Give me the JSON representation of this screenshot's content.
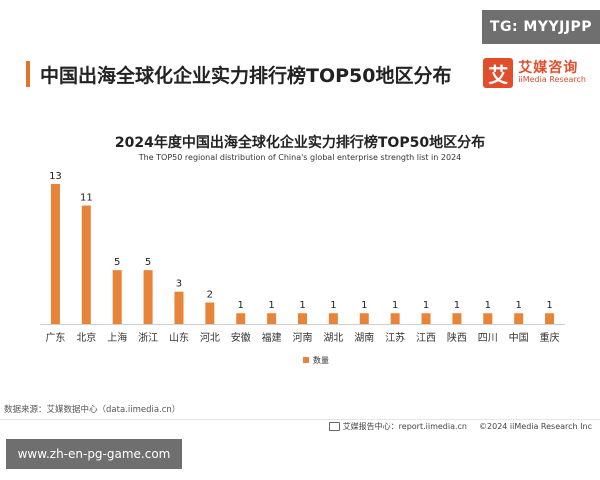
{
  "watermark": {
    "tg_label": "TG: MYYJJPP",
    "url": "www.zh-en-pg-game.com"
  },
  "header": {
    "title": "中国出海全球化企业实力排行榜TOP50地区分布"
  },
  "logo": {
    "glyph": "艾",
    "name_cn": "艾媒咨询",
    "name_en": "iiMedia Research"
  },
  "footer": {
    "source": "数据来源：艾媒数据中心（data.iimedia.cn）",
    "report": "艾媒报告中心：report.iimedia.cn",
    "copyright": "©2024  iiMedia Research  Inc"
  },
  "colors": {
    "bar": "#e8843a",
    "accent": "#e0742a",
    "logo": "#e24d2c"
  },
  "chart_data": {
    "type": "bar",
    "title": "2024年度中国出海全球化企业实力排行榜TOP50地区分布",
    "subtitle": "The TOP50 regional distribution of China's global enterprise strength list in 2024",
    "categories": [
      "广东",
      "北京",
      "上海",
      "浙江",
      "山东",
      "河北",
      "安徽",
      "福建",
      "河南",
      "湖北",
      "湖南",
      "江苏",
      "江西",
      "陕西",
      "四川",
      "中国",
      "重庆"
    ],
    "series": [
      {
        "name": "数量",
        "values": [
          13,
          11,
          5,
          5,
          3,
          2,
          1,
          1,
          1,
          1,
          1,
          1,
          1,
          1,
          1,
          1,
          1
        ]
      }
    ],
    "ylim": [
      0,
      13
    ],
    "grid": false,
    "legend": "bottom-center",
    "data_labels": true
  }
}
